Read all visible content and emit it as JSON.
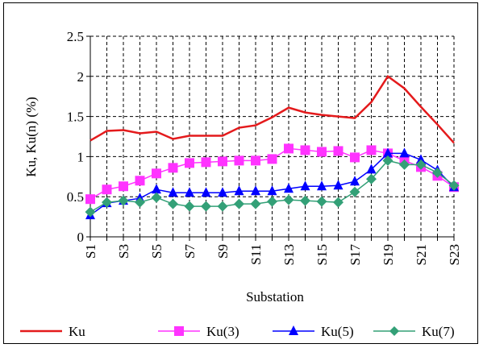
{
  "chart_data": {
    "type": "line",
    "title": "",
    "xlabel": "Substation",
    "ylabel": "Ku, Ku(n) (%)",
    "ylim": [
      0,
      2.5
    ],
    "yticks": [
      "0",
      "0.5",
      "1",
      "1.5",
      "2",
      "2.5"
    ],
    "grid": true,
    "legend_position": "bottom",
    "x": [
      "S1",
      "S2",
      "S3",
      "S4",
      "S5",
      "S6",
      "S7",
      "S8",
      "S9",
      "S10",
      "S11",
      "S12",
      "S13",
      "S14",
      "S15",
      "S16",
      "S17",
      "S18",
      "S19",
      "S20",
      "S21",
      "S22",
      "S23"
    ],
    "xtick_labels": [
      "S1",
      "S3",
      "S5",
      "S7",
      "S9",
      "S11",
      "S13",
      "S15",
      "S17",
      "S19",
      "S21",
      "S23"
    ],
    "series": [
      {
        "name": "Ku",
        "color": "#e41a1c",
        "marker": "none",
        "values": [
          1.2,
          1.32,
          1.33,
          1.29,
          1.31,
          1.22,
          1.26,
          1.26,
          1.26,
          1.36,
          1.39,
          1.49,
          1.61,
          1.55,
          1.52,
          1.5,
          1.48,
          1.68,
          2.0,
          1.85,
          1.62,
          1.4,
          1.17
        ]
      },
      {
        "name": "Ku(3)",
        "color": "#ff33ff",
        "marker": "square",
        "values": [
          0.47,
          0.59,
          0.63,
          0.7,
          0.79,
          0.86,
          0.92,
          0.93,
          0.94,
          0.95,
          0.95,
          0.97,
          1.1,
          1.08,
          1.06,
          1.07,
          0.99,
          1.08,
          1.04,
          0.95,
          0.87,
          0.76,
          0.62
        ]
      },
      {
        "name": "Ku(5)",
        "color": "#0000ff",
        "marker": "triangle",
        "values": [
          0.27,
          0.42,
          0.45,
          0.48,
          0.59,
          0.55,
          0.55,
          0.55,
          0.55,
          0.57,
          0.57,
          0.57,
          0.6,
          0.63,
          0.63,
          0.64,
          0.69,
          0.84,
          1.04,
          1.04,
          0.96,
          0.83,
          0.62
        ]
      },
      {
        "name": "Ku(7)",
        "color": "#33a077",
        "marker": "diamond",
        "values": [
          0.31,
          0.43,
          0.45,
          0.43,
          0.49,
          0.41,
          0.38,
          0.38,
          0.38,
          0.41,
          0.41,
          0.44,
          0.46,
          0.45,
          0.44,
          0.43,
          0.56,
          0.72,
          0.95,
          0.9,
          0.9,
          0.8,
          0.64
        ]
      }
    ]
  }
}
